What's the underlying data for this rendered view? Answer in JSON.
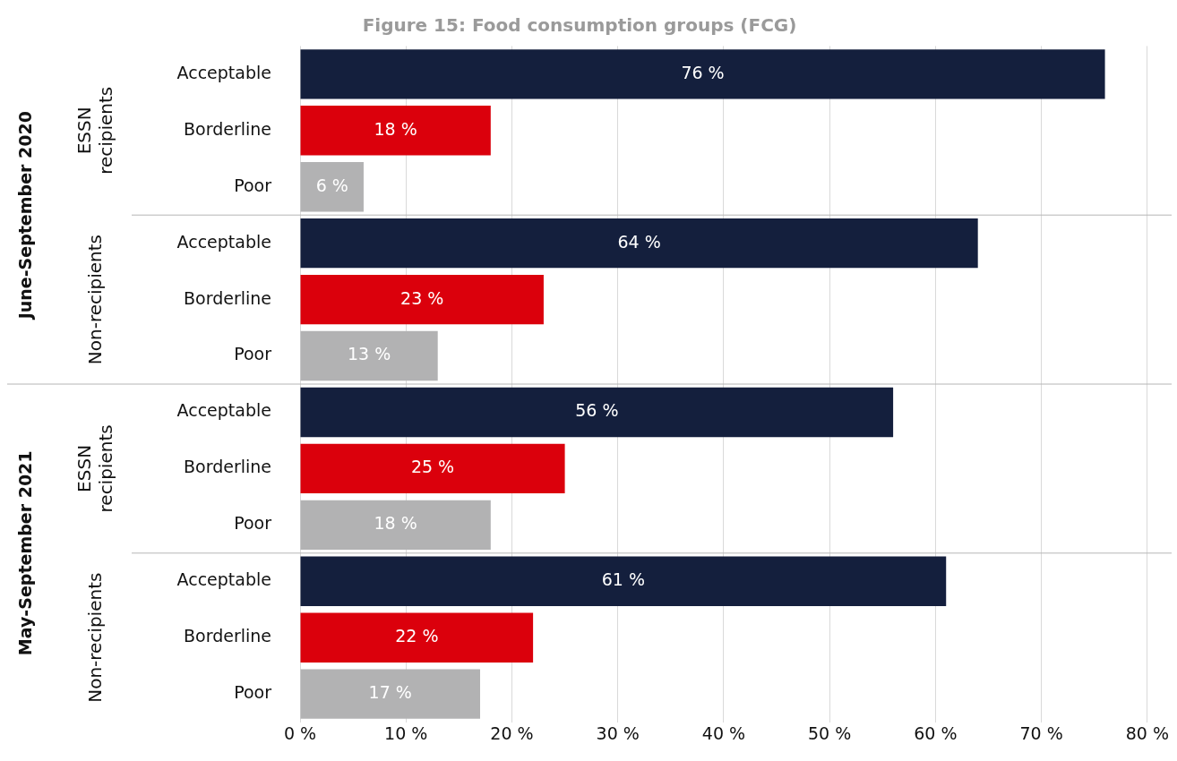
{
  "chart_data": {
    "type": "bar",
    "orientation": "horizontal",
    "title": "Figure 15: Food consumption groups (FCG)",
    "categories": [
      "Acceptable",
      "Borderline",
      "Poor",
      "Acceptable",
      "Borderline",
      "Poor",
      "Acceptable",
      "Borderline",
      "Poor",
      "Acceptable",
      "Borderline",
      "Poor"
    ],
    "values": [
      76,
      18,
      6,
      64,
      23,
      13,
      56,
      25,
      18,
      61,
      22,
      17
    ],
    "colors": [
      "#141f3d",
      "#db000c",
      "#b2b2b3",
      "#141f3d",
      "#db000c",
      "#b2b2b3",
      "#141f3d",
      "#db000c",
      "#b2b2b3",
      "#141f3d",
      "#db000c",
      "#b2b2b3"
    ],
    "value_labels": [
      "76 %",
      "18 %",
      "6 %",
      "64 %",
      "23 %",
      "13 %",
      "56 %",
      "25 %",
      "18 %",
      "61 %",
      "22 %",
      "17 %"
    ],
    "xlim": [
      0,
      80
    ],
    "xticks": [
      {
        "value": 0,
        "label": "0 %"
      },
      {
        "value": 10,
        "label": "10 %"
      },
      {
        "value": 20,
        "label": "20 %"
      },
      {
        "value": 30,
        "label": "30 %"
      },
      {
        "value": 40,
        "label": "40 %"
      },
      {
        "value": 50,
        "label": "50 %"
      },
      {
        "value": 60,
        "label": "60 %"
      },
      {
        "value": 70,
        "label": "70 %"
      },
      {
        "value": 80,
        "label": "80 %"
      }
    ],
    "grid": "x",
    "legend": false,
    "annotations": [
      "ESSN recipients",
      "Non-recipients",
      "ESSN recipients",
      "Non-recipients",
      "June-September 2020",
      "May-September 2021"
    ]
  }
}
